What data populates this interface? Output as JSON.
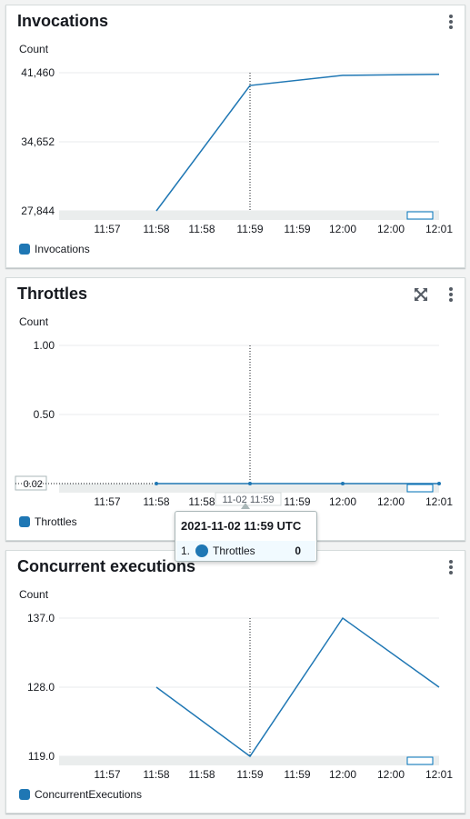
{
  "panels": [
    {
      "title": "Invocations",
      "count_label": "Count",
      "legend": "Invocations",
      "has_expand": false
    },
    {
      "title": "Throttles",
      "count_label": "Count",
      "legend": "Throttles",
      "has_expand": true
    },
    {
      "title": "Concurrent executions",
      "count_label": "Count",
      "legend": "ConcurrentExecutions",
      "has_expand": false
    }
  ],
  "tooltip": {
    "title": "2021-11-02 11:59 UTC",
    "index": "1.",
    "series": "Throttles",
    "value": "0",
    "axis_marker": "11-02 11:59"
  },
  "colors": {
    "series": "#1f77b4",
    "grid": "#e9ebed"
  },
  "chart_data": [
    {
      "type": "line",
      "title": "Invocations",
      "ylabel": "Count",
      "x": [
        "11:57",
        "11:58",
        "11:58",
        "11:59",
        "11:59",
        "12:00",
        "12:00",
        "12:01"
      ],
      "ylim": [
        27844,
        41460
      ],
      "yticks": [
        "41,460",
        "34,652",
        "27,844"
      ],
      "series": [
        {
          "name": "Invocations",
          "values": [
            null,
            27844,
            null,
            40200,
            null,
            41200,
            null,
            41300
          ]
        }
      ]
    },
    {
      "type": "line",
      "title": "Throttles",
      "ylabel": "Count",
      "x": [
        "11:57",
        "11:58",
        "11:58",
        "11:59",
        "11:59",
        "12:00",
        "12:00",
        "12:01"
      ],
      "ylim": [
        0,
        1
      ],
      "yticks": [
        "1.00",
        "0.50",
        "0.02"
      ],
      "series": [
        {
          "name": "Throttles",
          "values": [
            null,
            0,
            null,
            0,
            null,
            0,
            null,
            0
          ]
        }
      ]
    },
    {
      "type": "line",
      "title": "Concurrent executions",
      "ylabel": "Count",
      "x": [
        "11:57",
        "11:58",
        "11:58",
        "11:59",
        "11:59",
        "12:00",
        "12:00",
        "12:01"
      ],
      "ylim": [
        119,
        137
      ],
      "yticks": [
        "137.0",
        "128.0",
        "119.0"
      ],
      "series": [
        {
          "name": "ConcurrentExecutions",
          "values": [
            null,
            128,
            null,
            119,
            null,
            137,
            null,
            128
          ]
        }
      ]
    }
  ]
}
